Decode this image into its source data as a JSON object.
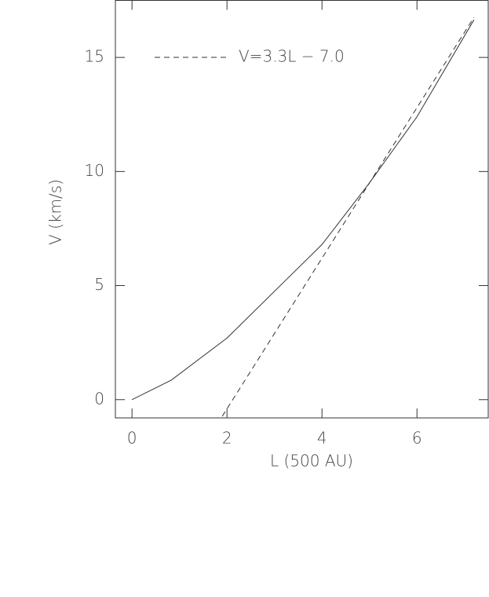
{
  "chart_data": {
    "type": "line",
    "xlabel": "L (500 AU)",
    "ylabel": "V (km/s)",
    "xlim": [
      -0.35,
      7.5
    ],
    "ylim": [
      -0.8,
      17.5
    ],
    "xticks": [
      0,
      2,
      4,
      6
    ],
    "yticks": [
      0,
      5,
      10,
      15
    ],
    "legend": "upper left",
    "series": [
      {
        "color": "#333333",
        "style": "solid",
        "x": [
          0,
          0.83,
          2,
          3,
          4,
          5,
          6,
          7.2
        ],
        "values": [
          0,
          0.86,
          2.7,
          4.75,
          6.8,
          9.5,
          12.4,
          16.65
        ]
      },
      {
        "name": "V=3.3L − 7.0",
        "color": "#333333",
        "style": "dashed",
        "x": [
          1.9,
          7.2
        ],
        "values": [
          -0.73,
          16.76
        ]
      }
    ]
  }
}
